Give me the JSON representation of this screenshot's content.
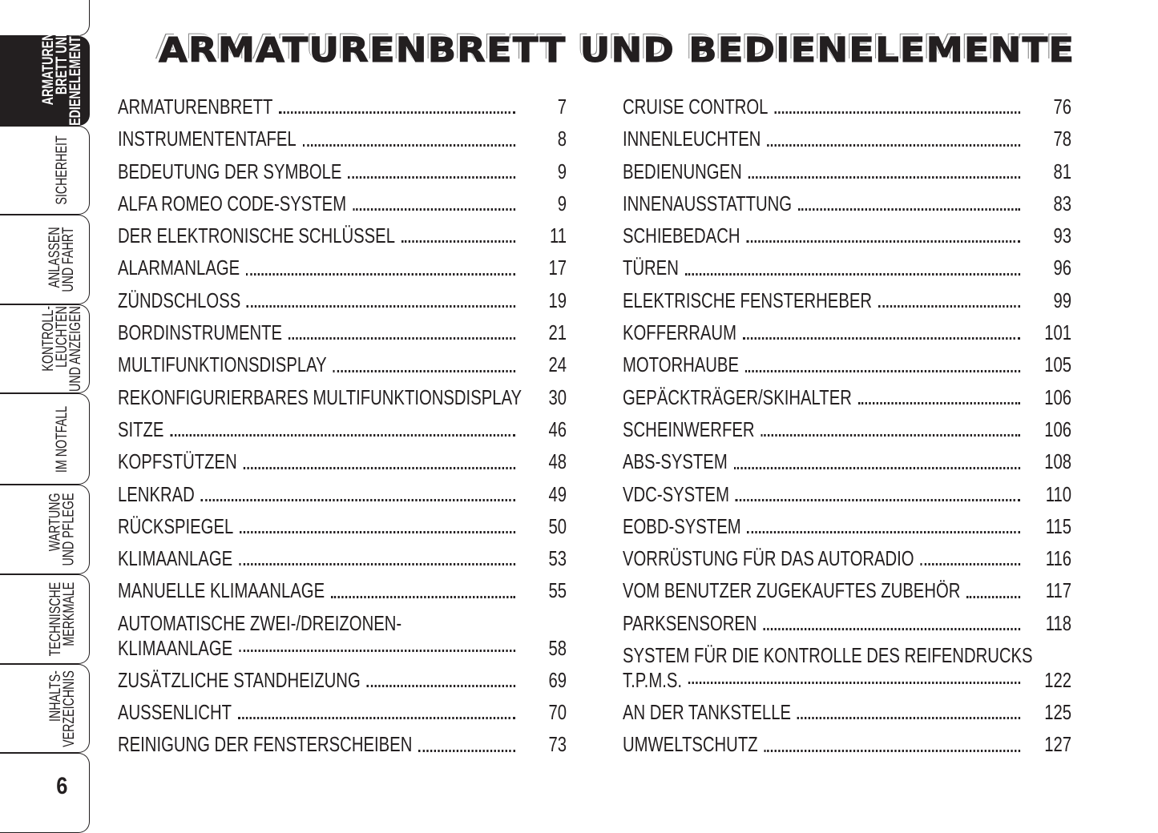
{
  "title": "ARMATURENBRETT UND BEDIENELEMENTE",
  "sidebar": {
    "tabs": [
      {
        "label": "ARMATUREN-\nBRETT UND\nBEDIENELEMENTE",
        "active": true
      },
      {
        "label": "SICHERHEIT"
      },
      {
        "label": "ANLASSEN\nUND FAHRT"
      },
      {
        "label": "KONTROLL-\nLEUCHTEN\nUND ANZEIGEN"
      },
      {
        "label": "IM NOTFALL"
      },
      {
        "label": "WARTUNG\nUND PFLEGE"
      },
      {
        "label": "TECHNISCHE\nMERKMALE"
      },
      {
        "label": "INHALTS-\nVERZEICHNIS"
      }
    ],
    "page_number": "6"
  },
  "toc_left": [
    {
      "title": "ARMATURENBRETT",
      "page": "7"
    },
    {
      "title": "INSTRUMENTENTAFEL",
      "page": "8"
    },
    {
      "title": "BEDEUTUNG DER SYMBOLE",
      "page": "9"
    },
    {
      "title": "ALFA ROMEO CODE-SYSTEM",
      "page": "9"
    },
    {
      "title": "DER ELEKTRONISCHE SCHLÜSSEL",
      "page": "11"
    },
    {
      "title": "ALARMANLAGE",
      "page": "17"
    },
    {
      "title": "ZÜNDSCHLOSS",
      "page": "19"
    },
    {
      "title": "BORDINSTRUMENTE",
      "page": "21"
    },
    {
      "title": "MULTIFUNKTIONSDISPLAY",
      "page": "24"
    },
    {
      "title": "REKONFIGURIERBARES MULTIFUNKTIONSDISPLAY",
      "page": "30"
    },
    {
      "title": "SITZE",
      "page": "46"
    },
    {
      "title": "KOPFSTÜTZEN",
      "page": "48"
    },
    {
      "title": "LENKRAD",
      "page": "49"
    },
    {
      "title": "RÜCKSPIEGEL",
      "page": "50"
    },
    {
      "title": "KLIMAANLAGE",
      "page": "53"
    },
    {
      "title": "MANUELLE KLIMAANLAGE",
      "page": "55"
    },
    {
      "title": "AUTOMATISCHE ZWEI-/DREIZONEN-",
      "title2": "KLIMAANLAGE",
      "page": "58"
    },
    {
      "title": "ZUSÄTZLICHE STANDHEIZUNG",
      "page": "69"
    },
    {
      "title": "AUSSENLICHT",
      "page": "70"
    },
    {
      "title": "REINIGUNG DER FENSTERSCHEIBEN",
      "page": "73"
    }
  ],
  "toc_right": [
    {
      "title": "CRUISE CONTROL",
      "page": "76"
    },
    {
      "title": "INNENLEUCHTEN",
      "page": "78"
    },
    {
      "title": "BEDIENUNGEN",
      "page": "81"
    },
    {
      "title": "INNENAUSSTATTUNG",
      "page": "83"
    },
    {
      "title": "SCHIEBEDACH",
      "page": "93"
    },
    {
      "title": "TÜREN",
      "page": "96"
    },
    {
      "title": "ELEKTRISCHE FENSTERHEBER",
      "page": "99"
    },
    {
      "title": "KOFFERRAUM",
      "page": "101"
    },
    {
      "title": "MOTORHAUBE",
      "page": "105"
    },
    {
      "title": "GEPÄCKTRÄGER/SKIHALTER",
      "page": "106"
    },
    {
      "title": "SCHEINWERFER",
      "page": "106"
    },
    {
      "title": "ABS-SYSTEM",
      "page": "108"
    },
    {
      "title": "VDC-SYSTEM",
      "page": "110"
    },
    {
      "title": "EOBD-SYSTEM",
      "page": "115"
    },
    {
      "title": "VORRÜSTUNG FÜR DAS AUTORADIO",
      "page": "116"
    },
    {
      "title": "VOM BENUTZER ZUGEKAUFTES ZUBEHÖR",
      "page": "117"
    },
    {
      "title": "PARKSENSOREN",
      "page": "118"
    },
    {
      "title": "SYSTEM FÜR DIE KONTROLLE DES REIFENDRUCKS",
      "title2": "T.P.M.S.",
      "page": "122"
    },
    {
      "title": "AN DER TANKSTELLE",
      "page": "125"
    },
    {
      "title": "UMWELTSCHUTZ",
      "page": "127"
    }
  ]
}
